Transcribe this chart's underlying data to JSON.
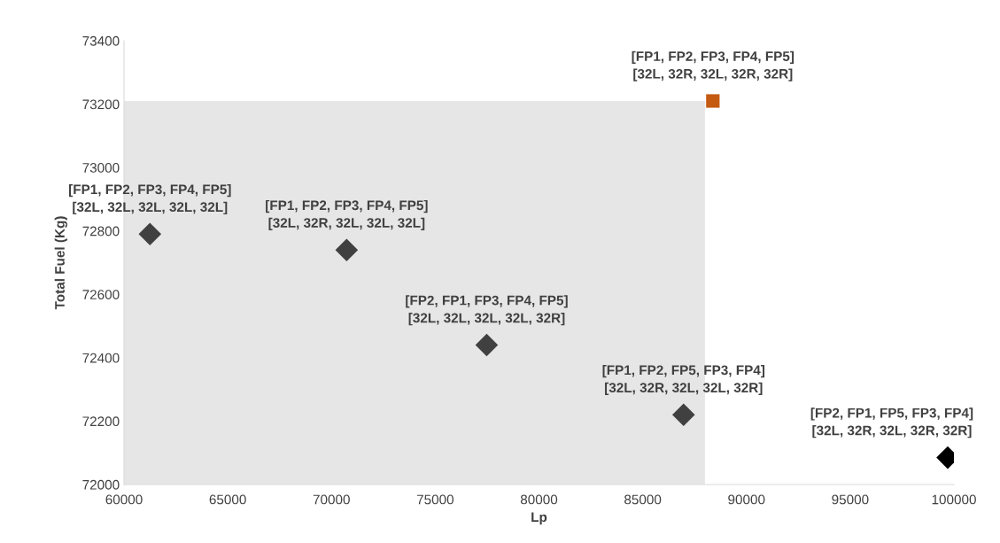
{
  "chart_data": {
    "type": "scatter",
    "xlabel": "Lp",
    "ylabel": "Total Fuel (Kg)",
    "xlim": [
      60000,
      100000
    ],
    "xticks": [
      60000,
      65000,
      70000,
      75000,
      80000,
      85000,
      90000,
      95000,
      100000
    ],
    "ylim": [
      72000,
      73400
    ],
    "yticks": [
      72000,
      72200,
      72400,
      72600,
      72800,
      73000,
      73200,
      73400
    ],
    "grid": false,
    "legend": false,
    "series": [
      {
        "type": "area",
        "color": "#e6e6e6",
        "x": [
          60000,
          88000
        ],
        "values": [
          73210,
          73210
        ]
      },
      {
        "marker": "diamond",
        "colors": [
          "#404040",
          "#404040",
          "#404040",
          "#404040",
          "#000000"
        ],
        "x": [
          61250,
          70730,
          77480,
          86970,
          99700
        ],
        "values": [
          72790,
          72740,
          72440,
          72220,
          72085
        ]
      },
      {
        "marker": "square",
        "color": "#c55a11",
        "x": [
          88380
        ],
        "values": [
          73210
        ]
      }
    ],
    "annotations": [
      {
        "text": "[FP1, FP2, FP3, FP4, FP5]\n[32L, 32L, 32L, 32L, 32L]",
        "x": 61250,
        "y": 72790
      },
      {
        "text": "[FP1, FP2, FP3, FP4, FP5]\n[32L, 32R, 32L, 32L, 32L]",
        "x": 70730,
        "y": 72740
      },
      {
        "text": "[FP2, FP1, FP3, FP4, FP5]\n[32L, 32L, 32L, 32L, 32R]",
        "x": 77480,
        "y": 72440
      },
      {
        "text": "[FP1, FP2, FP5, FP3, FP4]\n[32L, 32R, 32L, 32L, 32R]",
        "x": 86970,
        "y": 72220
      },
      {
        "text": "[FP2, FP1, FP5, FP3, FP4]\n[32L, 32R, 32L, 32R, 32R]",
        "x": 99700,
        "y": 72085
      },
      {
        "text": "[FP1, FP2, FP3, FP4, FP5]\n[32L, 32R, 32L, 32R, 32R]",
        "x": 88380,
        "y": 73210
      }
    ]
  }
}
